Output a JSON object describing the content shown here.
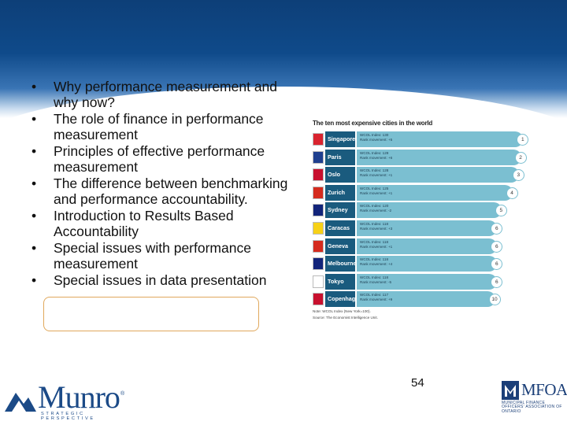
{
  "bullets": [
    "Why performance measurement and why now?",
    "The role of finance in performance measurement",
    "Principles of effective performance measurement",
    "The difference between benchmarking and performance accountability.",
    "Introduction to Results Based Accountability",
    "Special issues with performance measurement",
    "Special issues in data presentation"
  ],
  "bullet_symbol": "•",
  "highlighted_bullet_index": 6,
  "chart_data": {
    "type": "bar",
    "title": "The ten most expensive cities in the world",
    "categories": [
      "Singapore",
      "Paris",
      "Oslo",
      "Zurich",
      "Sydney",
      "Caracas",
      "Geneva",
      "Melbourne",
      "Tokyo",
      "Copenhagen"
    ],
    "series": [
      {
        "values": [
          130,
          129,
          128,
          125,
          120,
          118,
          118,
          118,
          118,
          117
        ]
      }
    ],
    "ranks": [
      "1",
      "2",
      "3",
      "4",
      "5",
      "6",
      "6",
      "6",
      "6",
      "10"
    ],
    "index_labels": [
      "WCOL Index: 130",
      "WCOL Index: 129",
      "WCOL Index: 128",
      "WCOL Index: 125",
      "WCOL Index: 120",
      "WCOL Index: 118",
      "WCOL Index: 118",
      "WCOL Index: 118",
      "WCOL Index: 118",
      "WCOL Index: 117"
    ],
    "movement_labels": [
      "Rank movement: +5",
      "Rank movement: +6",
      "Rank movement: +1",
      "Rank movement: +1",
      "Rank movement: -2",
      "Rank movement: +3",
      "Rank movement: +1",
      "Rank movement: +4",
      "Rank movement: -5",
      "Rank movement: +9"
    ],
    "note": "Note: WCOL Index (New York=100).",
    "source": "Source: The Economist Intelligence Unit.",
    "colors": {
      "city_tab": "#1a5b7e",
      "bar": "#7bbfd1"
    }
  },
  "footer": {
    "page_number": "54",
    "munro_logo": {
      "name": "Munro",
      "registered": "®",
      "tagline": "STRATEGIC PERSPECTIVE"
    },
    "mfoa_logo": {
      "name": "MFOA",
      "subtitle": "MUNICIPAL FINANCE OFFICERS' ASSOCIATION OF ONTARIO"
    }
  },
  "colors": {
    "header": "#0f4a8a",
    "highlight_border": "#e0a85c",
    "brand": "#1b4a87"
  }
}
